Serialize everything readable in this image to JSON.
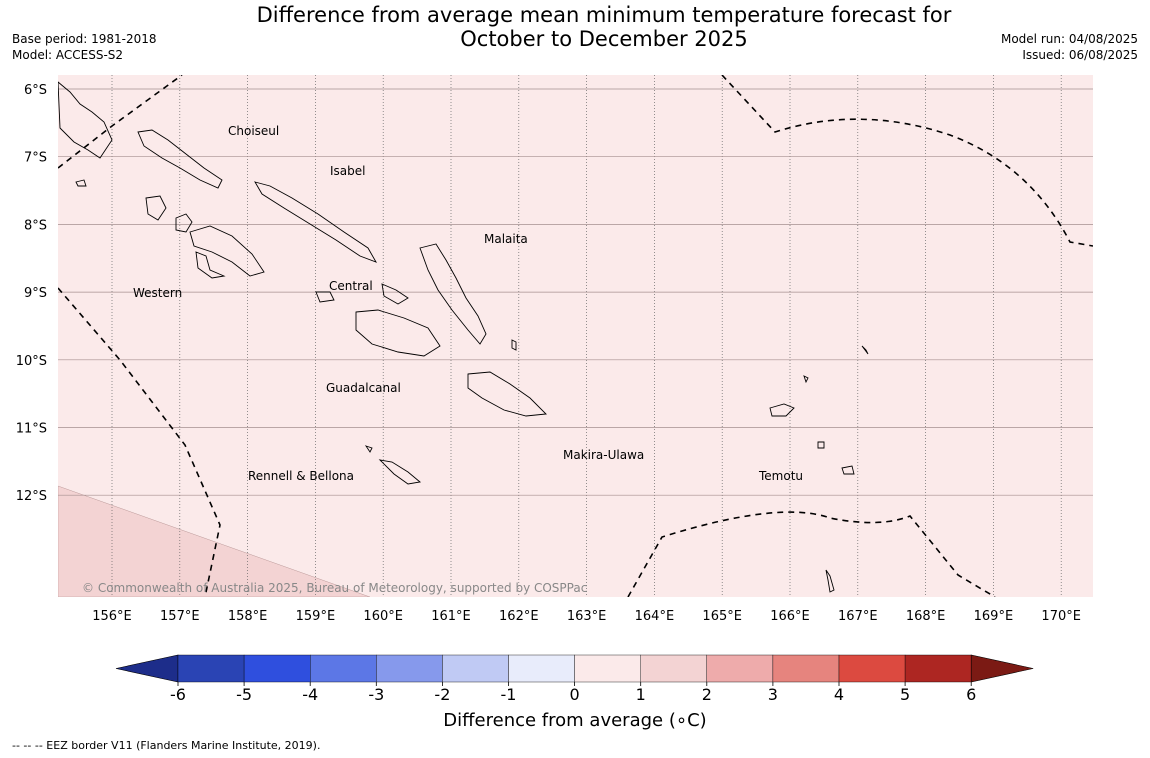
{
  "title_line1": "Difference from average mean minimum temperature forecast for",
  "title_line2": "October to December 2025",
  "base_period": "Base period: 1981-2018",
  "model": "Model: ACCESS-S2",
  "model_run": "Model run: 04/08/2025",
  "issued": "Issued: 06/08/2025",
  "copyright": "© Commonwealth of Australia 2025, Bureau of Meteorology, supported by COSPPac",
  "footer_note": "--  --  -- EEZ border V11 (Flanders Marine Institute, 2019).",
  "colorbar": {
    "label": "Difference from average (∘C)",
    "ticks": [
      "-6",
      "-5",
      "-4",
      "-3",
      "-2",
      "-1",
      "0",
      "1",
      "2",
      "3",
      "4",
      "5",
      "6"
    ],
    "colors": [
      "#1d2d8a",
      "#2a44b4",
      "#2f4fde",
      "#5c77e6",
      "#8699ec",
      "#c0caf4",
      "#e8ecfb",
      "#fbeaea",
      "#f3d3d3",
      "#eeabab",
      "#e6847e",
      "#dc4a40",
      "#ad2622",
      "#7b1a14"
    ]
  },
  "map": {
    "lon_labels": [
      "156°E",
      "157°E",
      "158°E",
      "159°E",
      "160°E",
      "161°E",
      "162°E",
      "163°E",
      "164°E",
      "165°E",
      "166°E",
      "167°E",
      "168°E",
      "169°E",
      "170°E"
    ],
    "lat_labels": [
      "6°S",
      "7°S",
      "8°S",
      "9°S",
      "10°S",
      "11°S",
      "12°S"
    ],
    "background_color": "#fbeaea",
    "anomaly_patch_color": "#f3d3d3",
    "regions": [
      "Choiseul",
      "Isabel",
      "Malaita",
      "Western",
      "Central",
      "Guadalcanal",
      "Makira-Ulawa",
      "Temotu",
      "Rennell & Bellona"
    ]
  }
}
